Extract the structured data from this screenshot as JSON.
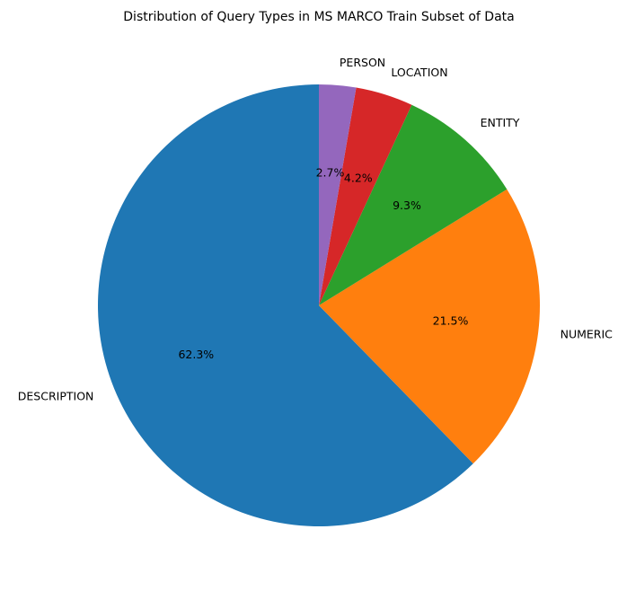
{
  "chart_data": {
    "type": "pie",
    "title": "Distribution of Query Types in MS MARCO Train Subset of Data",
    "start_angle_deg": 90,
    "direction": "counterclockwise",
    "legend": "none",
    "slices": [
      {
        "label": "DESCRIPTION",
        "value": 62.3,
        "pct_label": "62.3%",
        "color": "#1f77b4"
      },
      {
        "label": "NUMERIC",
        "value": 21.5,
        "pct_label": "21.5%",
        "color": "#ff7f0e"
      },
      {
        "label": "ENTITY",
        "value": 9.3,
        "pct_label": "9.3%",
        "color": "#2ca02c"
      },
      {
        "label": "LOCATION",
        "value": 4.2,
        "pct_label": "4.2%",
        "color": "#d62728"
      },
      {
        "label": "PERSON",
        "value": 2.7,
        "pct_label": "2.7%",
        "color": "#9467bd"
      }
    ]
  }
}
